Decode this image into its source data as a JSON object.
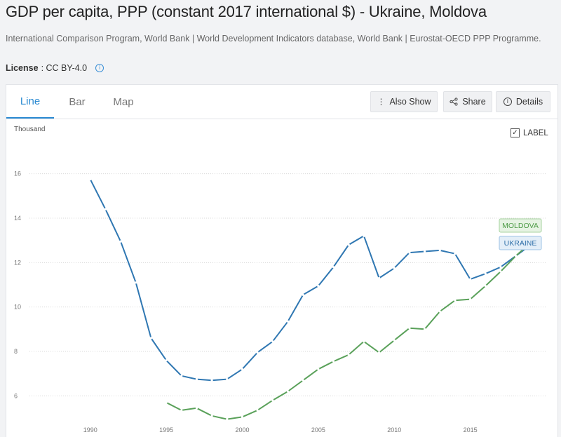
{
  "title": "GDP per capita, PPP (constant 2017 international $) - Ukraine, Moldova",
  "source": "International Comparison Program, World Bank | World Development Indicators database, World Bank | Eurostat-OECD PPP Programme.",
  "license": {
    "label": "License",
    "value": ": CC BY-4.0",
    "info_icon": "info-icon"
  },
  "tabs": [
    {
      "label": "Line",
      "active": true
    },
    {
      "label": "Bar",
      "active": false
    },
    {
      "label": "Map",
      "active": false
    }
  ],
  "toolbar": {
    "also_show": {
      "label": "Also Show",
      "icon": "kebab-icon"
    },
    "share": {
      "label": "Share",
      "icon": "share-icon"
    },
    "details": {
      "label": "Details",
      "icon": "info-icon"
    }
  },
  "label_toggle": {
    "label": "LABEL",
    "checked": true
  },
  "colors": {
    "ukraine": "#2f77b2",
    "moldova": "#5aa15a",
    "accent": "#2a8ad2"
  },
  "chart_data": {
    "type": "line",
    "title": "",
    "xlabel": "",
    "ylabel": "Thousand",
    "xlim": [
      1986,
      2020
    ],
    "ylim": [
      5,
      17
    ],
    "x_ticks": [
      1990,
      1995,
      2000,
      2005,
      2010,
      2015
    ],
    "y_ticks": [
      6,
      8,
      10,
      12,
      14,
      16
    ],
    "grid": "horizontal",
    "series": [
      {
        "name": "UKRAINE",
        "x": [
          1990,
          1991,
          1992,
          1993,
          1994,
          1995,
          1996,
          1997,
          1998,
          1999,
          2000,
          2001,
          2002,
          2003,
          2004,
          2005,
          2006,
          2007,
          2008,
          2009,
          2010,
          2011,
          2012,
          2013,
          2014,
          2015,
          2016,
          2017,
          2018,
          2019
        ],
        "values": [
          15.75,
          14.4,
          12.95,
          11.1,
          8.6,
          7.6,
          6.9,
          6.75,
          6.7,
          6.75,
          7.2,
          7.95,
          8.45,
          9.35,
          10.55,
          10.95,
          11.8,
          12.8,
          13.2,
          11.3,
          11.75,
          12.45,
          12.5,
          12.55,
          12.4,
          11.25,
          11.5,
          11.8,
          12.3,
          12.8
        ]
      },
      {
        "name": "MOLDOVA",
        "x": [
          1995,
          1996,
          1997,
          1998,
          1999,
          2000,
          2001,
          2002,
          2003,
          2004,
          2005,
          2006,
          2007,
          2008,
          2009,
          2010,
          2011,
          2012,
          2013,
          2014,
          2015,
          2016,
          2017,
          2018,
          2019
        ],
        "values": [
          5.7,
          5.35,
          5.45,
          5.1,
          4.95,
          5.05,
          5.35,
          5.8,
          6.2,
          6.7,
          7.2,
          7.55,
          7.85,
          8.45,
          7.95,
          8.5,
          9.05,
          9.0,
          9.8,
          10.3,
          10.35,
          10.95,
          11.6,
          12.3,
          12.9
        ]
      }
    ]
  }
}
